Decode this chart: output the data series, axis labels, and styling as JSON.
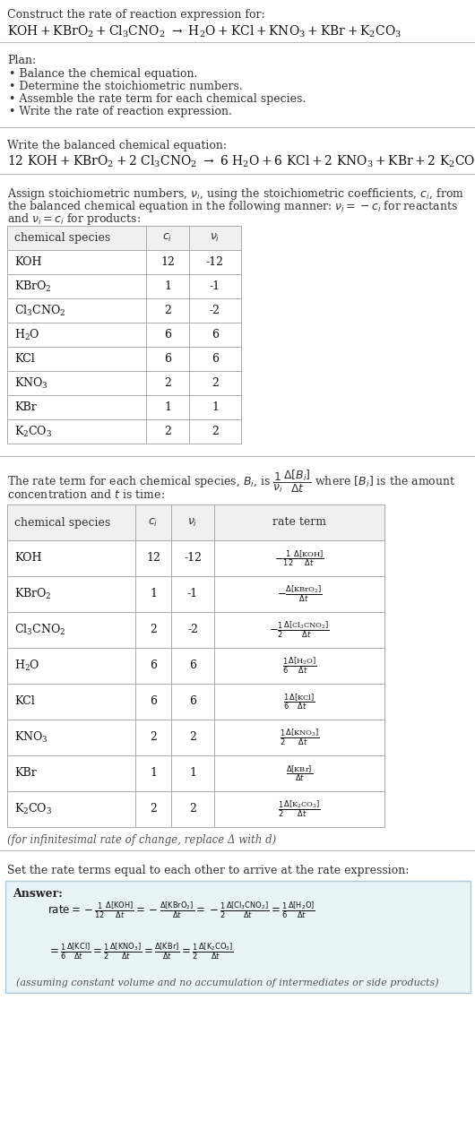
{
  "bg_color": "#ffffff",
  "text_color": "#222222",
  "title_line1": "Construct the rate of reaction expression for:",
  "plan_header": "Plan:",
  "plan_items": [
    "• Balance the chemical equation.",
    "• Determine the stoichiometric numbers.",
    "• Assemble the rate term for each chemical species.",
    "• Write the rate of reaction expression."
  ],
  "balanced_header": "Write the balanced chemical equation:",
  "table1_rows": [
    [
      "KOH",
      "12",
      "-12"
    ],
    [
      "KBrO₂",
      "1",
      "-1"
    ],
    [
      "Cl₃CNO₂",
      "2",
      "-2"
    ],
    [
      "H₂O",
      "6",
      "6"
    ],
    [
      "KCl",
      "6",
      "6"
    ],
    [
      "KNO₃",
      "2",
      "2"
    ],
    [
      "KBr",
      "1",
      "1"
    ],
    [
      "K₂CO₃",
      "2",
      "2"
    ]
  ],
  "infinitesimal_note": "(for infinitesimal rate of change, replace Δ with d)",
  "set_rate_text": "Set the rate terms equal to each other to arrive at the rate expression:",
  "answer_label": "Answer:",
  "answer_box_color": "#e8f4f8",
  "answer_box_border": "#b0c8d8"
}
